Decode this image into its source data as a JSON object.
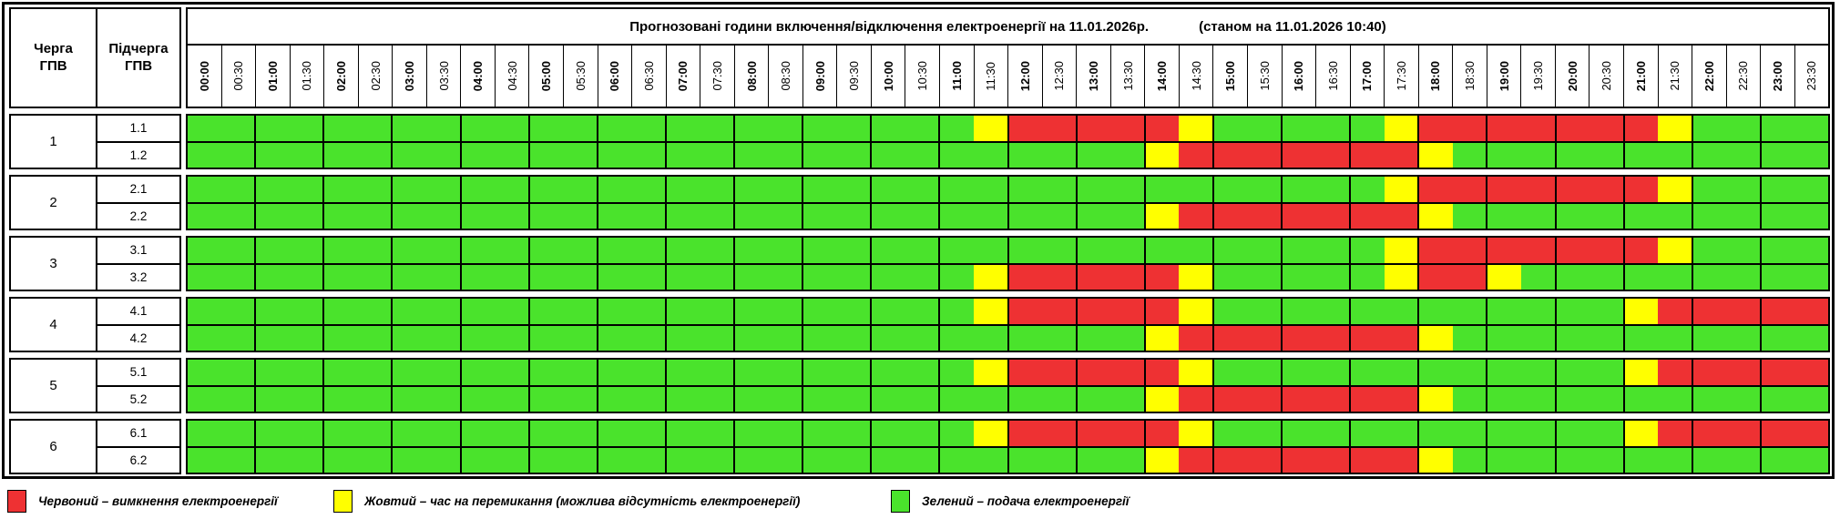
{
  "table": {
    "title_main": "Прогнозовані години включення/відключення електроенергії на 11.01.2026р.",
    "title_status": "(станом на 11.01.2026 10:40)",
    "col1_header": "Черга ГПВ",
    "col2_header": "Підчерга ГПВ"
  },
  "time_slots": [
    "00:00",
    "00:30",
    "01:00",
    "01:30",
    "02:00",
    "02:30",
    "03:00",
    "03:30",
    "04:00",
    "04:30",
    "05:00",
    "05:30",
    "06:00",
    "06:30",
    "07:00",
    "07:30",
    "08:00",
    "08:30",
    "09:00",
    "09:30",
    "10:00",
    "10:30",
    "11:00",
    "11:30",
    "12:00",
    "12:30",
    "13:00",
    "13:30",
    "14:00",
    "14:30",
    "15:00",
    "15:30",
    "16:00",
    "16:30",
    "17:00",
    "17:30",
    "18:00",
    "18:30",
    "19:00",
    "19:30",
    "20:00",
    "20:30",
    "21:00",
    "21:30",
    "22:00",
    "22:30",
    "23:00",
    "23:30"
  ],
  "colors": {
    "G": "#4AE32C",
    "Y": "#FFFF00",
    "R": "#EE3133"
  },
  "color_meanings": {
    "G": "подача електроенергії",
    "Y": "час на перемикання",
    "R": "вимкнення електроенергії"
  },
  "groups": [
    {
      "queue": "1",
      "rows": [
        {
          "sub": "1.1",
          "slots": "GGGGGGGGGGGGGGGGGGGGGGGYRRRRRYGGGGGYRRRRRRRYGGGG"
        },
        {
          "sub": "1.2",
          "slots": "GGGGGGGGGGGGGGGGGGGGGGGGGGGGYRRRRRRRYGGGGGGGGGGG"
        }
      ]
    },
    {
      "queue": "2",
      "rows": [
        {
          "sub": "2.1",
          "slots": "GGGGGGGGGGGGGGGGGGGGGGGGGGGGGGGGGGGYRRRRRRRYGGGG"
        },
        {
          "sub": "2.2",
          "slots": "GGGGGGGGGGGGGGGGGGGGGGGGGGGGYRRRRRRRYGGGGGGGGGGG"
        }
      ]
    },
    {
      "queue": "3",
      "rows": [
        {
          "sub": "3.1",
          "slots": "GGGGGGGGGGGGGGGGGGGGGGGGGGGGGGGGGGGYRRRRRRRYGGGG"
        },
        {
          "sub": "3.2",
          "slots": "GGGGGGGGGGGGGGGGGGGGGGGYRRRRRYGGGGGYRRYGGGGGGGGG"
        }
      ]
    },
    {
      "queue": "4",
      "rows": [
        {
          "sub": "4.1",
          "slots": "GGGGGGGGGGGGGGGGGGGGGGGYRRRRRYGGGGGGGGGGGGYRRRRR"
        },
        {
          "sub": "4.2",
          "slots": "GGGGGGGGGGGGGGGGGGGGGGGGGGGGYRRRRRRRYGGGGGGGGGGG"
        }
      ]
    },
    {
      "queue": "5",
      "rows": [
        {
          "sub": "5.1",
          "slots": "GGGGGGGGGGGGGGGGGGGGGGGYRRRRRYGGGGGGGGGGGGYRRRRR"
        },
        {
          "sub": "5.2",
          "slots": "GGGGGGGGGGGGGGGGGGGGGGGGGGGGYRRRRRRRYGGGGGGGGGGG"
        }
      ]
    },
    {
      "queue": "6",
      "rows": [
        {
          "sub": "6.1",
          "slots": "GGGGGGGGGGGGGGGGGGGGGGGYRRRRRYGGGGGGGGGGGGYRRRRR"
        },
        {
          "sub": "6.2",
          "slots": "GGGGGGGGGGGGGGGGGGGGGGGGGGGGYRRRRRRRYGGGGGGGGGGG"
        }
      ]
    }
  ],
  "legend": [
    {
      "color": "#EE3133",
      "label": "Червоний – вимкнення електроенергії"
    },
    {
      "color": "#FFFF00",
      "label": "Жовтий – час на перемикання (можлива відсутність електроенергії)"
    },
    {
      "color": "#4AE32C",
      "label": "Зелений – подача електроенергії"
    }
  ]
}
